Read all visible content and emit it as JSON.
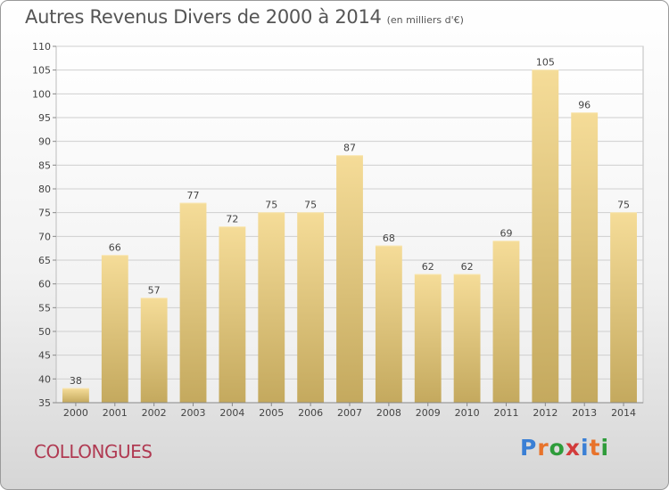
{
  "title": "Autres Revenus Divers de 2000 à 2014",
  "subtitle": "(en milliers d'€)",
  "commune": "COLLONGUES",
  "logo": {
    "text": "Proxiti",
    "colors": [
      "#3a7fd5",
      "#e8732b",
      "#2e9c3a",
      "#d23b3b",
      "#3a7fd5",
      "#e8732b",
      "#2e9c3a"
    ]
  },
  "colors": {
    "bar_top": "#f5dc98",
    "bar_bottom": "#c4a95e",
    "grid": "#cfcfcf",
    "axis_text": "#444444",
    "commune": "#b03a52"
  },
  "chart_data": {
    "type": "bar",
    "title": "Autres Revenus Divers de 2000 à 2014",
    "subtitle": "(en milliers d'€)",
    "xlabel": "",
    "ylabel": "",
    "categories": [
      "2000",
      "2001",
      "2002",
      "2003",
      "2004",
      "2005",
      "2006",
      "2007",
      "2008",
      "2009",
      "2010",
      "2011",
      "2012",
      "2013",
      "2014"
    ],
    "values": [
      38,
      66,
      57,
      77,
      72,
      75,
      75,
      87,
      68,
      62,
      62,
      69,
      105,
      96,
      75
    ],
    "ylim": [
      35,
      110
    ],
    "yticks": [
      35,
      40,
      45,
      50,
      55,
      60,
      65,
      70,
      75,
      80,
      85,
      90,
      95,
      100,
      105,
      110
    ],
    "grid": true,
    "data_labels": true
  }
}
